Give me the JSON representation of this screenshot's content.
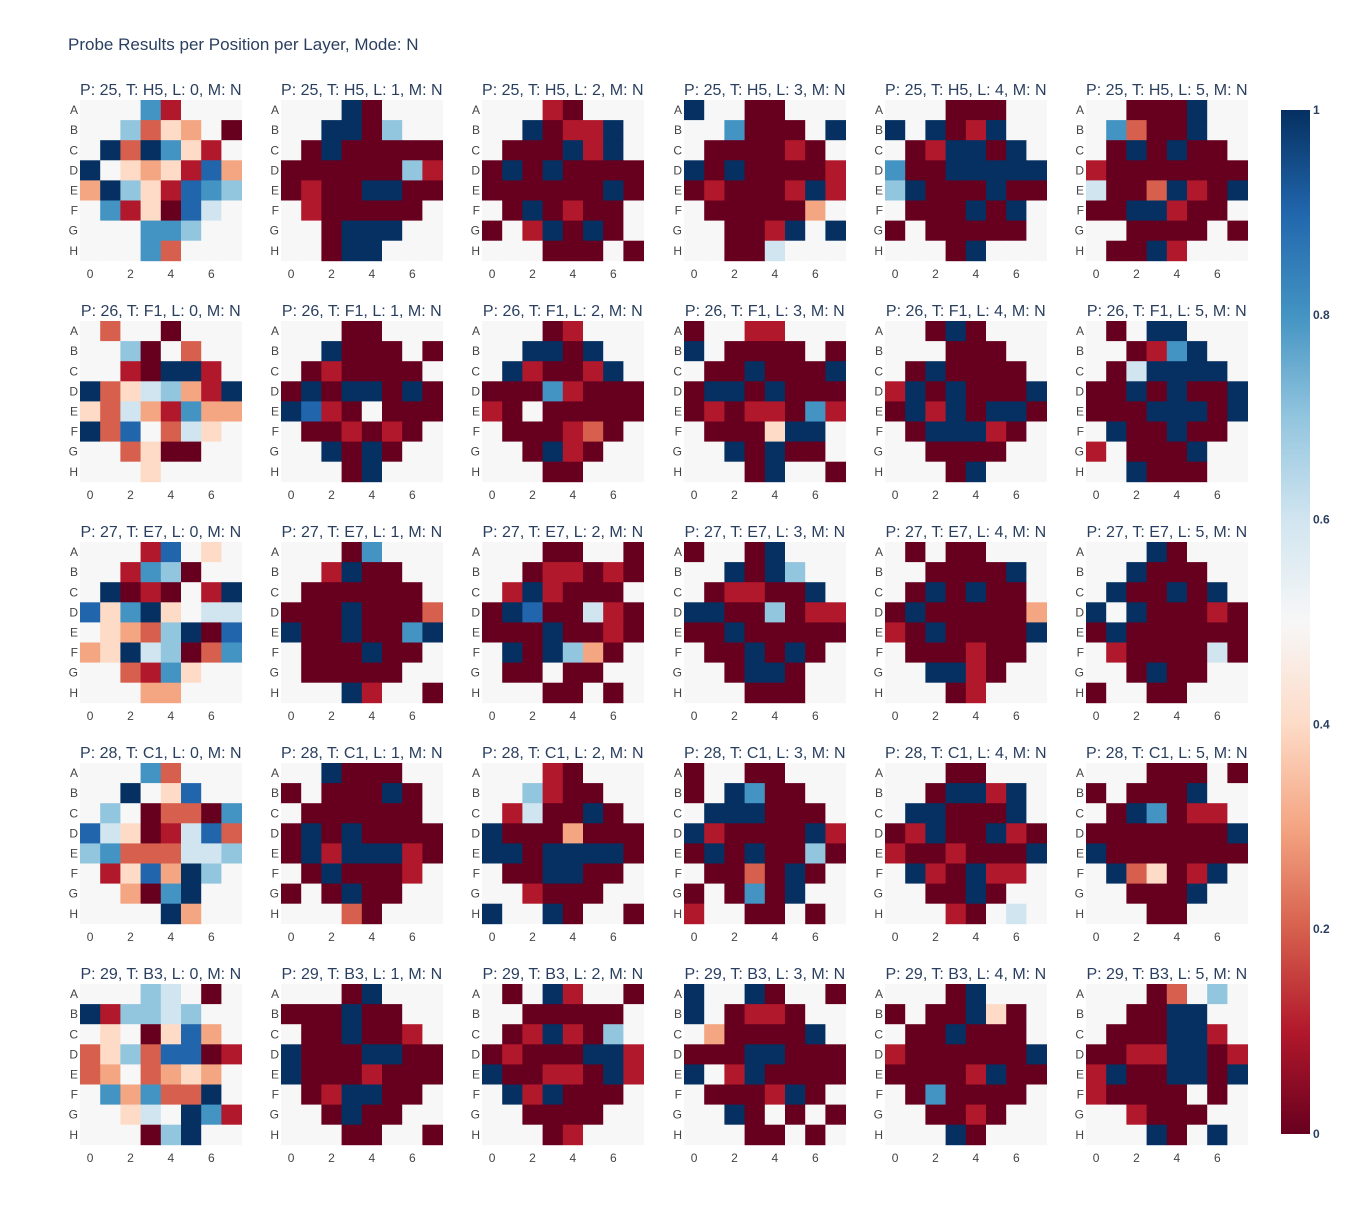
{
  "chart_data": {
    "type": "heatmap",
    "title": "Probe Results per Position per Layer, Mode: N",
    "y_categories": [
      "A",
      "B",
      "C",
      "D",
      "E",
      "F",
      "G",
      "H"
    ],
    "x_ticks": [
      0,
      2,
      4,
      6
    ],
    "colorbar": {
      "min": 0,
      "max": 1,
      "ticks": [
        0,
        0.2,
        0.4,
        0.6,
        0.8,
        1
      ]
    },
    "colorscale": "RdBu",
    "panels": [
      {
        "title": "P: 25, T: H5, L: 0, M: N"
      },
      {
        "title": "P: 25, T: H5, L: 1, M: N"
      },
      {
        "title": "P: 25, T: H5, L: 2, M: N"
      },
      {
        "title": "P: 25, T: H5, L: 3, M: N"
      },
      {
        "title": "P: 25, T: H5, L: 4, M: N"
      },
      {
        "title": "P: 25, T: H5, L: 5, M: N"
      },
      {
        "title": "P: 26, T: F1, L: 0, M: N"
      },
      {
        "title": "P: 26, T: F1, L: 1, M: N"
      },
      {
        "title": "P: 26, T: F1, L: 2, M: N"
      },
      {
        "title": "P: 26, T: F1, L: 3, M: N"
      },
      {
        "title": "P: 26, T: F1, L: 4, M: N"
      },
      {
        "title": "P: 26, T: F1, L: 5, M: N"
      },
      {
        "title": "P: 27, T: E7, L: 0, M: N"
      },
      {
        "title": "P: 27, T: E7, L: 1, M: N"
      },
      {
        "title": "P: 27, T: E7, L: 2, M: N"
      },
      {
        "title": "P: 27, T: E7, L: 3, M: N"
      },
      {
        "title": "P: 27, T: E7, L: 4, M: N"
      },
      {
        "title": "P: 27, T: E7, L: 5, M: N"
      },
      {
        "title": "P: 28, T: C1, L: 0, M: N"
      },
      {
        "title": "P: 28, T: C1, L: 1, M: N"
      },
      {
        "title": "P: 28, T: C1, L: 2, M: N"
      },
      {
        "title": "P: 28, T: C1, L: 3, M: N"
      },
      {
        "title": "P: 28, T: C1, L: 4, M: N"
      },
      {
        "title": "P: 28, T: C1, L: 5, M: N"
      },
      {
        "title": "P: 29, T: B3, L: 0, M: N"
      },
      {
        "title": "P: 29, T: B3, L: 1, M: N"
      },
      {
        "title": "P: 29, T: B3, L: 2, M: N"
      },
      {
        "title": "P: 29, T: B3, L: 3, M: N"
      },
      {
        "title": "P: 29, T: B3, L: 4, M: N"
      },
      {
        "title": "P: 29, T: B3, L: 5, M: N"
      }
    ]
  }
}
